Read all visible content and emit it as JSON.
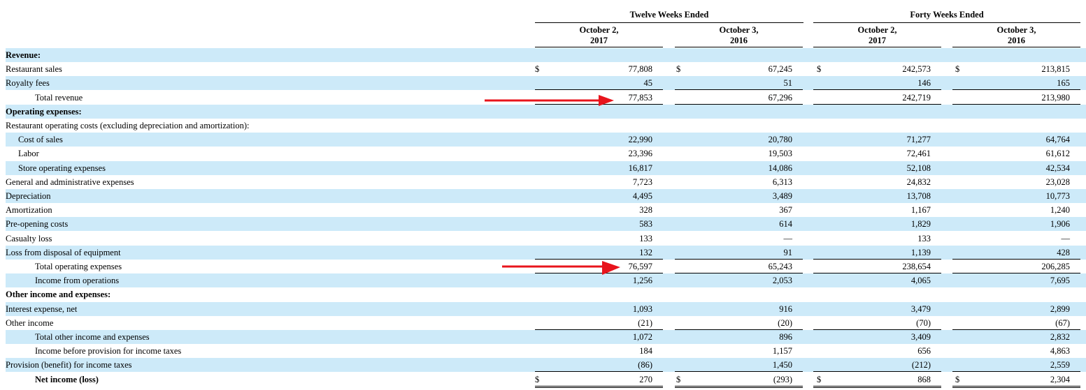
{
  "header": {
    "group1": "Twelve Weeks Ended",
    "group2": "Forty Weeks Ended",
    "col1": [
      "October 2,",
      "2017"
    ],
    "col2": [
      "October 3,",
      "2016"
    ],
    "col3": [
      "October 2,",
      "2017"
    ],
    "col4": [
      "October 3,",
      "2016"
    ]
  },
  "rows": [
    {
      "label": "Revenue:",
      "bold": true,
      "indent": 0,
      "shade": true,
      "values": [
        "",
        "",
        "",
        ""
      ]
    },
    {
      "label": "Restaurant sales",
      "indent": 0,
      "shade": false,
      "dollar": true,
      "values": [
        "77,808",
        "67,245",
        "242,573",
        "213,815"
      ]
    },
    {
      "label": "Royalty fees",
      "indent": 0,
      "shade": true,
      "values": [
        "45",
        "51",
        "146",
        "165"
      ],
      "ruleBelow": true
    },
    {
      "label": "Total revenue",
      "indent": 2,
      "shade": false,
      "values": [
        "77,853",
        "67,296",
        "242,719",
        "213,980"
      ],
      "ruleBelow": true
    },
    {
      "label": "Operating expenses:",
      "bold": true,
      "indent": 0,
      "shade": true,
      "values": [
        "",
        "",
        "",
        ""
      ]
    },
    {
      "label": "Restaurant operating costs (excluding depreciation and amortization):",
      "indent": 0,
      "shade": false,
      "values": [
        "",
        "",
        "",
        ""
      ]
    },
    {
      "label": "Cost of sales",
      "indent": 1,
      "shade": true,
      "values": [
        "22,990",
        "20,780",
        "71,277",
        "64,764"
      ]
    },
    {
      "label": "Labor",
      "indent": 1,
      "shade": false,
      "values": [
        "23,396",
        "19,503",
        "72,461",
        "61,612"
      ]
    },
    {
      "label": "Store operating expenses",
      "indent": 1,
      "shade": true,
      "values": [
        "16,817",
        "14,086",
        "52,108",
        "42,534"
      ]
    },
    {
      "label": "General and administrative expenses",
      "indent": 0,
      "shade": false,
      "values": [
        "7,723",
        "6,313",
        "24,832",
        "23,028"
      ]
    },
    {
      "label": "Depreciation",
      "indent": 0,
      "shade": true,
      "values": [
        "4,495",
        "3,489",
        "13,708",
        "10,773"
      ]
    },
    {
      "label": "Amortization",
      "indent": 0,
      "shade": false,
      "values": [
        "328",
        "367",
        "1,167",
        "1,240"
      ]
    },
    {
      "label": "Pre-opening costs",
      "indent": 0,
      "shade": true,
      "values": [
        "583",
        "614",
        "1,829",
        "1,906"
      ]
    },
    {
      "label": "Casualty loss",
      "indent": 0,
      "shade": false,
      "values": [
        "133",
        "—",
        "133",
        "—"
      ]
    },
    {
      "label": "Loss from disposal of equipment",
      "indent": 0,
      "shade": true,
      "values": [
        "132",
        "91",
        "1,139",
        "428"
      ],
      "ruleBelow": true
    },
    {
      "label": "Total operating expenses",
      "indent": 2,
      "shade": false,
      "values": [
        "76,597",
        "65,243",
        "238,654",
        "206,285"
      ],
      "ruleBelow": true
    },
    {
      "label": "Income from operations",
      "indent": 2,
      "shade": true,
      "values": [
        "1,256",
        "2,053",
        "4,065",
        "7,695"
      ]
    },
    {
      "label": "Other income and expenses:",
      "bold": true,
      "indent": 0,
      "shade": false,
      "values": [
        "",
        "",
        "",
        ""
      ]
    },
    {
      "label": "Interest expense, net",
      "indent": 0,
      "shade": true,
      "values": [
        "1,093",
        "916",
        "3,479",
        "2,899"
      ]
    },
    {
      "label": "Other income",
      "indent": 0,
      "shade": false,
      "values": [
        "(21)",
        "(20)",
        "(70)",
        "(67)"
      ],
      "ruleBelow": true
    },
    {
      "label": "Total other income and expenses",
      "indent": 2,
      "shade": true,
      "values": [
        "1,072",
        "896",
        "3,409",
        "2,832"
      ]
    },
    {
      "label": "Income before provision for income taxes",
      "indent": 2,
      "shade": false,
      "values": [
        "184",
        "1,157",
        "656",
        "4,863"
      ]
    },
    {
      "label": "Provision (benefit) for income taxes",
      "indent": 0,
      "shade": true,
      "values": [
        "(86)",
        "1,450",
        "(212)",
        "2,559"
      ],
      "ruleBelow": true
    },
    {
      "label": "Net income (loss)",
      "bold": true,
      "indent": 2,
      "shade": false,
      "dollar": true,
      "values": [
        "270",
        "(293)",
        "868",
        "2,304"
      ],
      "doubleBelow": true
    }
  ],
  "currency_symbol": "$",
  "colors": {
    "shade": "#cdeaf9",
    "arrow": "#e8141c"
  },
  "annotations": [
    {
      "type": "arrow",
      "points_to": "Total revenue"
    },
    {
      "type": "arrow",
      "points_to": "Total operating expenses"
    }
  ]
}
